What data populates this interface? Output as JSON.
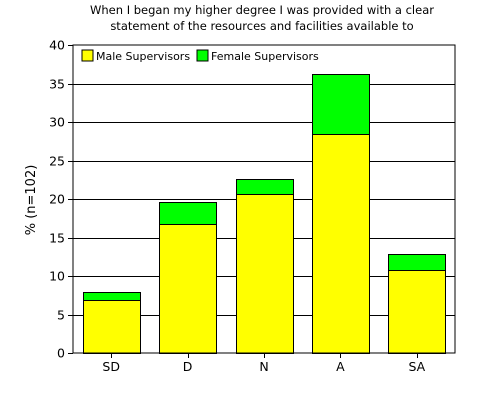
{
  "chart_data": {
    "type": "bar",
    "stacked": true,
    "title_lines": [
      "When I began my higher degree I was provided with a clear",
      "statement of the resources and facilities available to"
    ],
    "xlabel": "",
    "ylabel": "% (n=102)",
    "categories": [
      "SD",
      "D",
      "N",
      "A",
      "SA"
    ],
    "series": [
      {
        "name": "Male Supervisors",
        "values": [
          6.9,
          16.7,
          20.6,
          28.4,
          10.8
        ],
        "color": "#ffff00"
      },
      {
        "name": "Female Supervisors",
        "values": [
          1.0,
          2.9,
          2.0,
          7.8,
          2.0
        ],
        "color": "#00ff00"
      }
    ],
    "ylim": [
      0,
      40
    ],
    "yticks": [
      "0",
      "5",
      "10",
      "15",
      "20",
      "25",
      "30",
      "35",
      "40"
    ],
    "grid": "horizontal",
    "legend_position": "top-left"
  }
}
